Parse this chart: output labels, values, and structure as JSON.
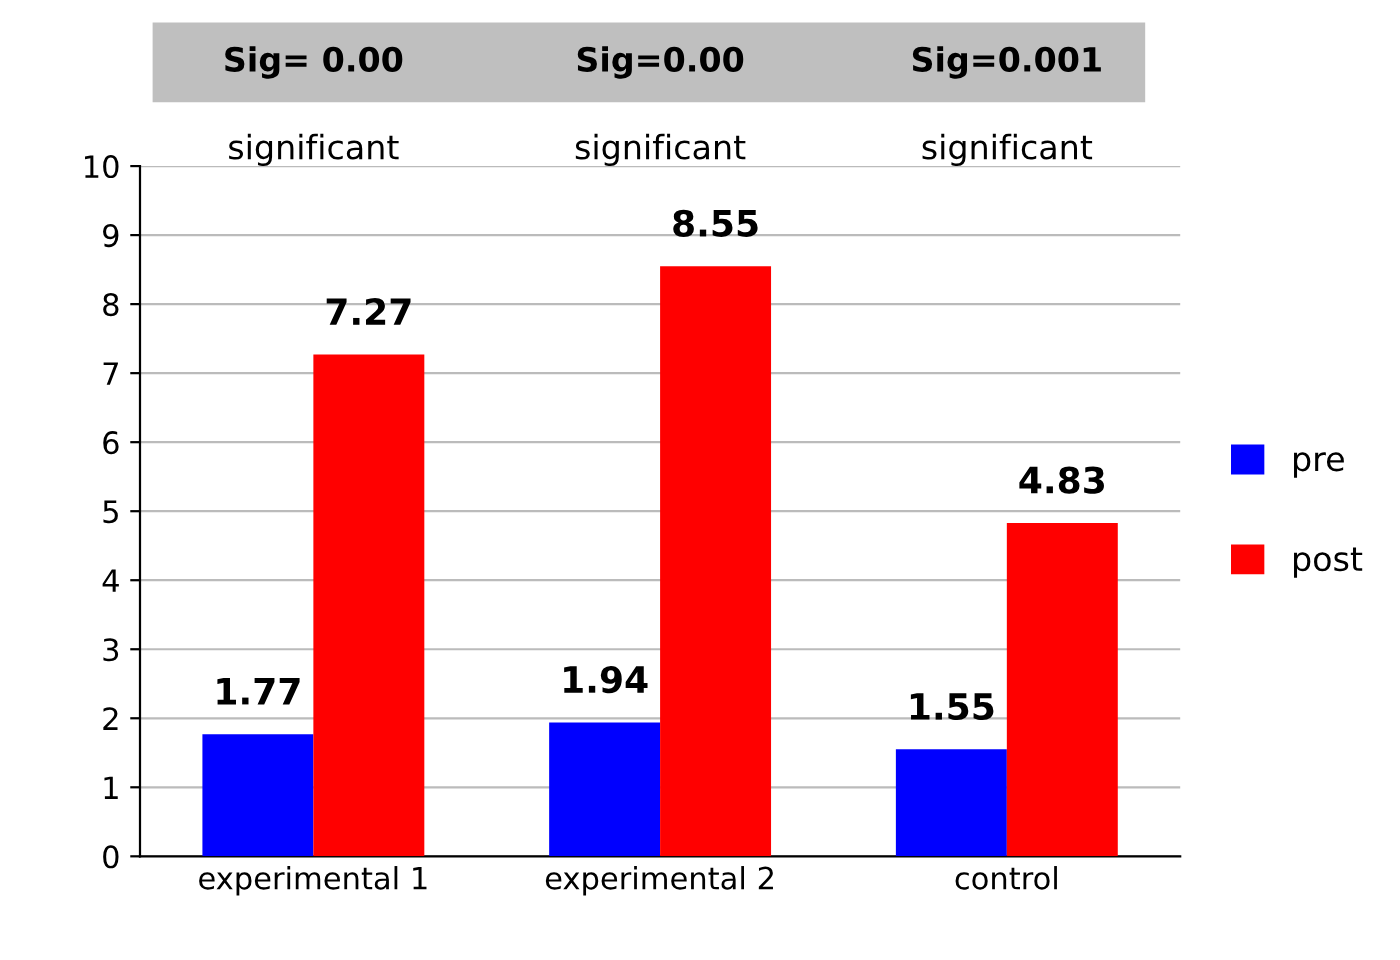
{
  "chart_data": {
    "type": "bar",
    "categories": [
      "experimental 1",
      "experimental 2",
      "control"
    ],
    "series": [
      {
        "name": "pre",
        "color": "#0000ff",
        "values": [
          1.77,
          1.94,
          1.55
        ]
      },
      {
        "name": "post",
        "color": "#ff0000",
        "values": [
          7.27,
          8.55,
          4.83
        ]
      }
    ],
    "ylim": [
      0,
      10
    ],
    "yticks": [
      0,
      1,
      2,
      3,
      4,
      5,
      6,
      7,
      8,
      9,
      10
    ],
    "grid": "y",
    "legend": "right",
    "data_labels": true,
    "annotations": [
      "Sig= 0.00",
      "Sig=0.00",
      "Sig=0.001",
      "significant",
      "significant",
      "significant"
    ]
  }
}
